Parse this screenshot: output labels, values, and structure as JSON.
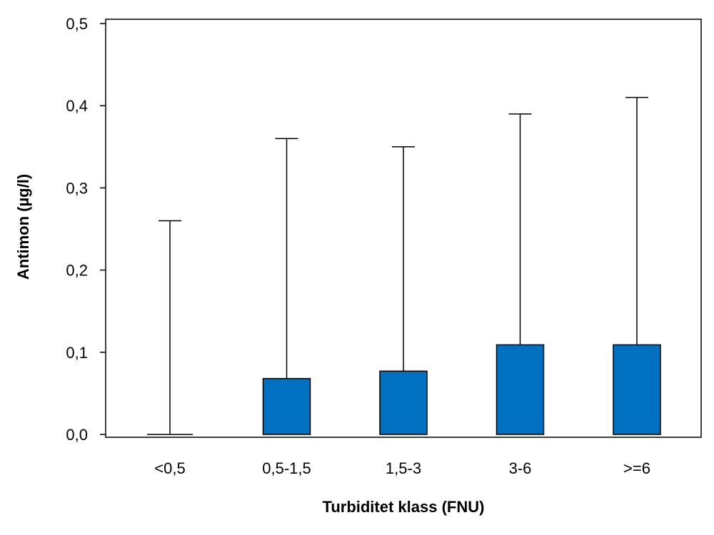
{
  "chart_data": {
    "type": "bar",
    "xlabel": "Turbiditet klass (FNU)",
    "ylabel": "Antimon (µg/l)",
    "ylim": [
      0,
      0.5
    ],
    "yticks": [
      0.0,
      0.1,
      0.2,
      0.3,
      0.4,
      0.5
    ],
    "ytick_labels": [
      "0,0",
      "0,1",
      "0,2",
      "0,3",
      "0,4",
      "0,5"
    ],
    "categories": [
      "<0,5",
      "0,5-1,5",
      "1,5-3",
      "3-6",
      ">=6"
    ],
    "values": [
      0.0,
      0.068,
      0.077,
      0.109,
      0.109
    ],
    "error_upper": [
      0.26,
      0.36,
      0.35,
      0.39,
      0.41
    ],
    "bar_color": "#0070C0",
    "grid": false,
    "legend": "none"
  }
}
